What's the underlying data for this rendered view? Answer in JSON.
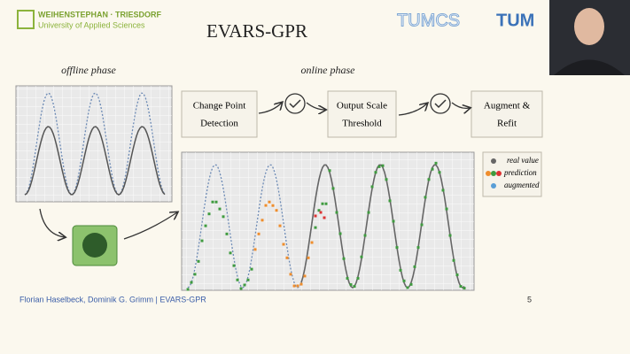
{
  "header": {
    "institution": "WEIHENSTEPHAN · TRIESDORF",
    "institution_subtitle": "University of Applied Sciences",
    "logo_cs": "TUMCS",
    "logo_tum": "TUM",
    "title": "EVARS-GPR"
  },
  "phases": {
    "offline": "offline phase",
    "online": "online phase"
  },
  "steps": [
    {
      "line1": "Change Point",
      "line2": "Detection"
    },
    {
      "line1": "Output Scale",
      "line2": "Threshold"
    },
    {
      "line1": "Augment &",
      "line2": "Refit"
    }
  ],
  "legend": [
    "real value",
    "prediction",
    "augmented"
  ],
  "footer": {
    "authors": "Florian Haselbeck, Dominik G. Grimm | EVARS-GPR",
    "page": "5"
  }
}
